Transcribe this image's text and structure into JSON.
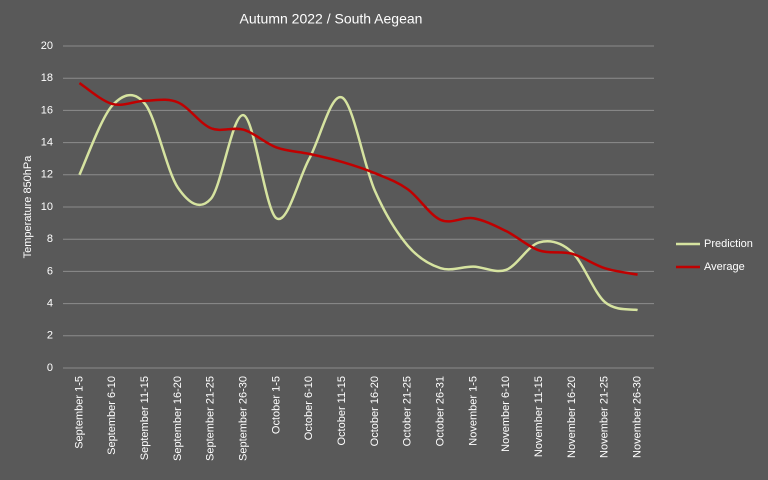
{
  "chart_data": {
    "type": "line",
    "title": "Autumn 2022 / South Aegean",
    "y_label": "Temperature 850hPa",
    "categories": [
      "September 1-5",
      "September 6-10",
      "September 11-15",
      "September 16-20",
      "September 21-25",
      "September 26-30",
      "October 1-5",
      "October 6-10",
      "October 11-15",
      "October 16-20",
      "October 21-25",
      "October 26-31",
      "November 1-5",
      "November 6-10",
      "November 11-15",
      "November 16-20",
      "November 21-25",
      "November 26-30"
    ],
    "series": [
      {
        "name": "Prediction",
        "color": "#d6e3a0",
        "values": [
          12,
          16.3,
          16.4,
          11.2,
          10.5,
          15.7,
          9.3,
          13,
          16.8,
          11,
          7.6,
          6.2,
          6.3,
          6.1,
          7.8,
          7.2,
          4.1,
          3.6
        ]
      },
      {
        "name": "Average",
        "color": "#c00000",
        "values": [
          17.7,
          16.4,
          16.6,
          16.5,
          14.9,
          14.8,
          13.7,
          13.3,
          12.8,
          12.1,
          11.1,
          9.2,
          9.3,
          8.5,
          7.3,
          7.1,
          6.2,
          5.8
        ]
      }
    ],
    "ylim": [
      0,
      20
    ],
    "yticks": [
      0,
      2,
      4,
      6,
      8,
      10,
      12,
      14,
      16,
      18,
      20
    ],
    "grid": true,
    "legend": "right",
    "smooth": true
  }
}
